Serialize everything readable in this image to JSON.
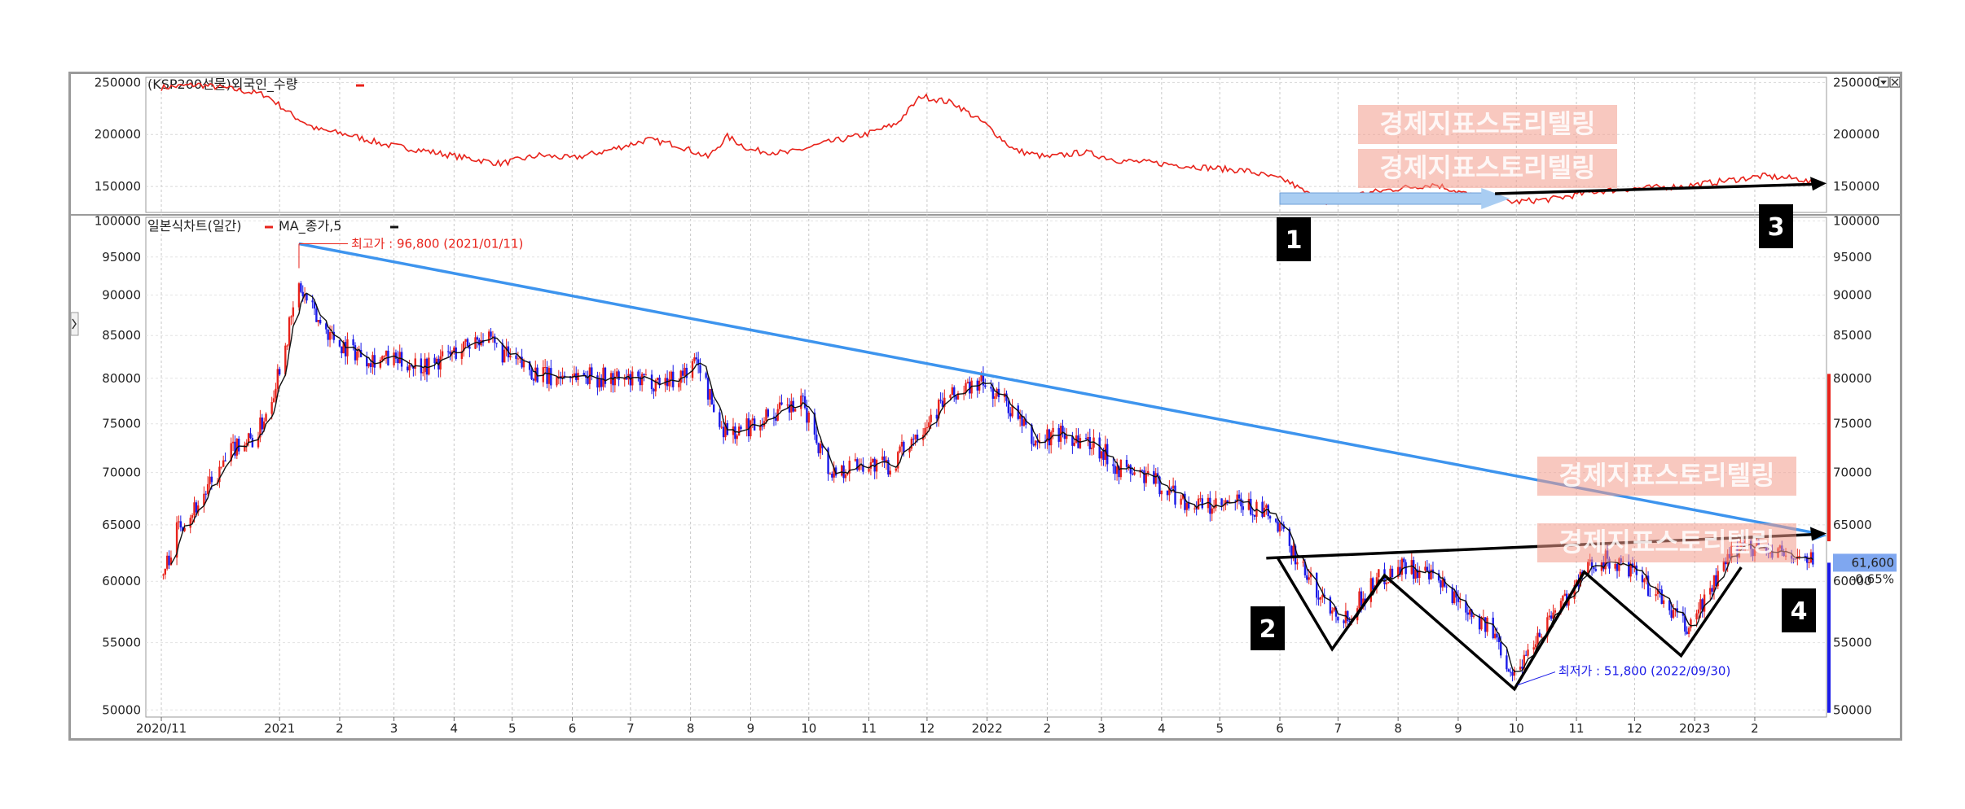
{
  "chart_data": [
    {
      "type": "line",
      "panel": "top",
      "legend": "(KSP200선물)외국인_수량",
      "yticks": [
        150000,
        200000,
        250000
      ],
      "ylim": [
        125000,
        255000
      ],
      "series": [
        {
          "name": "(KSP200선물)외국인_수량",
          "color": "#e8231b",
          "points": [
            [
              "2020-11-01",
              245000
            ],
            [
              "2020-11-20",
              248000
            ],
            [
              "2020-12-10",
              243000
            ],
            [
              "2020-12-25",
              238000
            ],
            [
              "2021-01-08",
              218000
            ],
            [
              "2021-01-20",
              205000
            ],
            [
              "2021-02-05",
              200000
            ],
            [
              "2021-02-25",
              190000
            ],
            [
              "2021-03-15",
              185000
            ],
            [
              "2021-04-05",
              178000
            ],
            [
              "2021-04-25",
              172000
            ],
            [
              "2021-05-15",
              180000
            ],
            [
              "2021-06-01",
              177000
            ],
            [
              "2021-06-20",
              185000
            ],
            [
              "2021-07-10",
              195000
            ],
            [
              "2021-07-25",
              190000
            ],
            [
              "2021-08-10",
              178000
            ],
            [
              "2021-08-20",
              198000
            ],
            [
              "2021-09-01",
              185000
            ],
            [
              "2021-09-20",
              182000
            ],
            [
              "2021-10-10",
              192000
            ],
            [
              "2021-10-30",
              200000
            ],
            [
              "2021-11-15",
              210000
            ],
            [
              "2021-11-28",
              237000
            ],
            [
              "2021-12-15",
              230000
            ],
            [
              "2021-12-31",
              210000
            ],
            [
              "2022-01-15",
              185000
            ],
            [
              "2022-02-01",
              178000
            ],
            [
              "2022-02-20",
              183000
            ],
            [
              "2022-03-10",
              175000
            ],
            [
              "2022-04-01",
              172000
            ],
            [
              "2022-04-25",
              168000
            ],
            [
              "2022-05-15",
              165000
            ],
            [
              "2022-06-05",
              155000
            ],
            [
              "2022-06-25",
              132000
            ],
            [
              "2022-07-10",
              142000
            ],
            [
              "2022-08-01",
              148000
            ],
            [
              "2022-08-20",
              152000
            ],
            [
              "2022-09-10",
              140000
            ],
            [
              "2022-09-30",
              135000
            ],
            [
              "2022-10-20",
              138000
            ],
            [
              "2022-11-10",
              145000
            ],
            [
              "2022-12-01",
              148000
            ],
            [
              "2022-12-25",
              150000
            ],
            [
              "2023-01-15",
              155000
            ],
            [
              "2023-02-05",
              160000
            ],
            [
              "2023-02-25",
              157000
            ],
            [
              "2023-03-03",
              152000
            ]
          ]
        }
      ]
    },
    {
      "type": "candlestick",
      "panel": "bottom",
      "legend": "일본식차트(일간)",
      "legend2": "MA_종가,5",
      "ylim": [
        49500,
        100500
      ],
      "yticks": [
        50000,
        55000,
        60000,
        65000,
        70000,
        75000,
        80000,
        85000,
        90000,
        95000,
        100000
      ],
      "xticks": [
        "2020/11",
        "2021",
        "2",
        "3",
        "4",
        "5",
        "6",
        "7",
        "8",
        "9",
        "10",
        "11",
        "12",
        "2022",
        "2",
        "3",
        "4",
        "5",
        "6",
        "7",
        "8",
        "9",
        "10",
        "11",
        "12",
        "2023",
        "2"
      ],
      "xtick_dates": [
        "2020-11-01",
        "2021-01-01",
        "2021-02-01",
        "2021-03-01",
        "2021-04-01",
        "2021-05-01",
        "2021-06-01",
        "2021-07-01",
        "2021-08-01",
        "2021-09-01",
        "2021-10-01",
        "2021-11-01",
        "2021-12-01",
        "2022-01-01",
        "2022-02-01",
        "2022-03-01",
        "2022-04-01",
        "2022-05-01",
        "2022-06-01",
        "2022-07-01",
        "2022-08-01",
        "2022-09-01",
        "2022-10-01",
        "2022-11-01",
        "2022-12-01",
        "2023-01-01",
        "2023-02-01"
      ],
      "up_color": "#e8231b",
      "down_color": "#1a1ae8",
      "ma_color": "#111111",
      "close_path": [
        [
          "2020-11-02",
          60500
        ],
        [
          "2020-11-10",
          65000
        ],
        [
          "2020-11-20",
          67000
        ],
        [
          "2020-12-01",
          70000
        ],
        [
          "2020-12-10",
          73000
        ],
        [
          "2020-12-20",
          73500
        ],
        [
          "2020-12-28",
          78000
        ],
        [
          "2021-01-05",
          85000
        ],
        [
          "2021-01-11",
          91000
        ],
        [
          "2021-01-20",
          87000
        ],
        [
          "2021-02-01",
          84000
        ],
        [
          "2021-02-15",
          82500
        ],
        [
          "2021-03-01",
          82000
        ],
        [
          "2021-03-20",
          81500
        ],
        [
          "2021-04-05",
          83500
        ],
        [
          "2021-04-15",
          85000
        ],
        [
          "2021-05-01",
          82000
        ],
        [
          "2021-05-20",
          80000
        ],
        [
          "2021-06-01",
          80500
        ],
        [
          "2021-06-20",
          80000
        ],
        [
          "2021-07-05",
          79500
        ],
        [
          "2021-07-25",
          80000
        ],
        [
          "2021-08-05",
          82000
        ],
        [
          "2021-08-15",
          75000
        ],
        [
          "2021-08-25",
          74000
        ],
        [
          "2021-09-10",
          76000
        ],
        [
          "2021-09-28",
          77000
        ],
        [
          "2021-10-12",
          70000
        ],
        [
          "2021-10-28",
          71000
        ],
        [
          "2021-11-12",
          70500
        ],
        [
          "2021-11-25",
          74000
        ],
        [
          "2021-12-10",
          77500
        ],
        [
          "2021-12-28",
          79500
        ],
        [
          "2022-01-10",
          77500
        ],
        [
          "2022-01-25",
          73000
        ],
        [
          "2022-02-08",
          74000
        ],
        [
          "2022-02-25",
          73000
        ],
        [
          "2022-03-10",
          70500
        ],
        [
          "2022-03-25",
          69500
        ],
        [
          "2022-04-15",
          67000
        ],
        [
          "2022-04-30",
          66500
        ],
        [
          "2022-05-10",
          67000
        ],
        [
          "2022-05-25",
          66000
        ],
        [
          "2022-06-05",
          63500
        ],
        [
          "2022-06-20",
          59000
        ],
        [
          "2022-07-05",
          57000
        ],
        [
          "2022-07-20",
          60000
        ],
        [
          "2022-08-05",
          61500
        ],
        [
          "2022-08-20",
          60000
        ],
        [
          "2022-09-05",
          58000
        ],
        [
          "2022-09-20",
          55500
        ],
        [
          "2022-09-30",
          52500
        ],
        [
          "2022-10-15",
          56500
        ],
        [
          "2022-10-28",
          59000
        ],
        [
          "2022-11-12",
          62000
        ],
        [
          "2022-11-28",
          61000
        ],
        [
          "2022-12-12",
          59000
        ],
        [
          "2022-12-28",
          56000
        ],
        [
          "2023-01-10",
          59500
        ],
        [
          "2023-01-25",
          63500
        ],
        [
          "2023-02-10",
          62500
        ],
        [
          "2023-02-25",
          62000
        ],
        [
          "2023-03-03",
          61600
        ]
      ],
      "current_price_label": "61,600",
      "current_price_value": 61600,
      "change_label": "-0.65%",
      "annotations": {
        "high_label": "최고가 : 96,800 (2021/01/11)",
        "high_value": 96800,
        "high_date": "2021-01-11",
        "low_label": "최저가 : 51,800 (2022/09/30)",
        "low_value": 51800,
        "low_date": "2022-09-30"
      },
      "blue_trendline": [
        [
          "2021-01-11",
          96800
        ],
        [
          "2023-03-10",
          64000
        ]
      ],
      "neckline": [
        [
          "2022-05-25",
          62000
        ],
        [
          "2023-03-10",
          64200
        ]
      ],
      "pattern_polyline": [
        [
          "2022-05-31",
          62000
        ],
        [
          "2022-06-28",
          54500
        ],
        [
          "2022-07-25",
          60500
        ],
        [
          "2022-09-30",
          51500
        ],
        [
          "2022-11-05",
          60800
        ],
        [
          "2022-12-25",
          54000
        ],
        [
          "2023-01-25",
          61200
        ]
      ],
      "top_panel_trendline": [
        [
          "2022-09-20",
          143000
        ],
        [
          "2023-03-10",
          153000
        ]
      ],
      "range_bar": [
        [
          "2022-06-01",
          "2022-09-15"
        ]
      ],
      "markers": [
        "1",
        "2",
        "3",
        "4"
      ],
      "watermark": "경제지표스토리텔링"
    }
  ]
}
